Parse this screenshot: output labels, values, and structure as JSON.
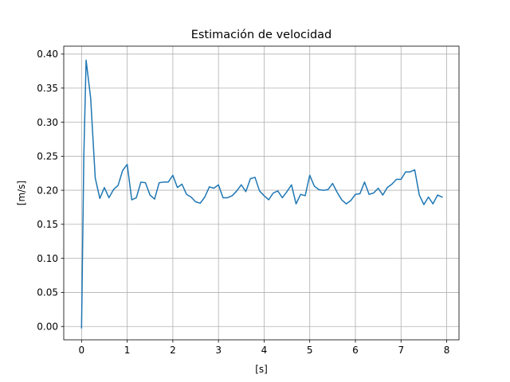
{
  "chart_data": {
    "type": "line",
    "title": "Estimación de velocidad",
    "xlabel": "[s]",
    "ylabel": "[m/s]",
    "xlim": [
      -0.39,
      8.27
    ],
    "ylim": [
      -0.0196,
      0.4116
    ],
    "xticks": [
      0,
      1,
      2,
      3,
      4,
      5,
      6,
      7,
      8
    ],
    "yticks": [
      0.0,
      0.05,
      0.1,
      0.15,
      0.2,
      0.25,
      0.3,
      0.35,
      0.4
    ],
    "yticklabels": [
      "0.00",
      "0.05",
      "0.10",
      "0.15",
      "0.20",
      "0.25",
      "0.30",
      "0.35",
      "0.40"
    ],
    "grid": true,
    "series": [
      {
        "color": "#1f77b4",
        "x": [
          0.0,
          0.05,
          0.1,
          0.2,
          0.3,
          0.4,
          0.5,
          0.6,
          0.7,
          0.8,
          0.9,
          1.0,
          1.1,
          1.2,
          1.3,
          1.4,
          1.5,
          1.6,
          1.7,
          1.8,
          1.9,
          2.0,
          2.1,
          2.2,
          2.3,
          2.4,
          2.5,
          2.6,
          2.7,
          2.8,
          2.9,
          3.0,
          3.1,
          3.2,
          3.3,
          3.4,
          3.5,
          3.6,
          3.7,
          3.8,
          3.9,
          4.0,
          4.1,
          4.2,
          4.3,
          4.4,
          4.5,
          4.6,
          4.7,
          4.8,
          4.9,
          5.0,
          5.1,
          5.2,
          5.3,
          5.4,
          5.5,
          5.6,
          5.7,
          5.8,
          5.9,
          6.0,
          6.1,
          6.2,
          6.3,
          6.4,
          6.5,
          6.6,
          6.7,
          6.8,
          6.9,
          7.0,
          7.1,
          7.2,
          7.3,
          7.4,
          7.5,
          7.6,
          7.7,
          7.8,
          7.9
        ],
        "y": [
          -0.002,
          0.25,
          0.391,
          0.335,
          0.218,
          0.188,
          0.204,
          0.189,
          0.201,
          0.207,
          0.229,
          0.238,
          0.186,
          0.189,
          0.212,
          0.211,
          0.193,
          0.187,
          0.211,
          0.212,
          0.212,
          0.222,
          0.204,
          0.209,
          0.194,
          0.19,
          0.183,
          0.181,
          0.19,
          0.205,
          0.203,
          0.208,
          0.189,
          0.189,
          0.192,
          0.199,
          0.208,
          0.198,
          0.217,
          0.219,
          0.199,
          0.192,
          0.186,
          0.196,
          0.199,
          0.189,
          0.198,
          0.208,
          0.18,
          0.194,
          0.192,
          0.222,
          0.206,
          0.201,
          0.2,
          0.201,
          0.21,
          0.197,
          0.186,
          0.18,
          0.185,
          0.194,
          0.195,
          0.212,
          0.194,
          0.196,
          0.203,
          0.193,
          0.204,
          0.209,
          0.216,
          0.216,
          0.227,
          0.227,
          0.23,
          0.193,
          0.179,
          0.19,
          0.18,
          0.193,
          0.19
        ]
      }
    ]
  }
}
